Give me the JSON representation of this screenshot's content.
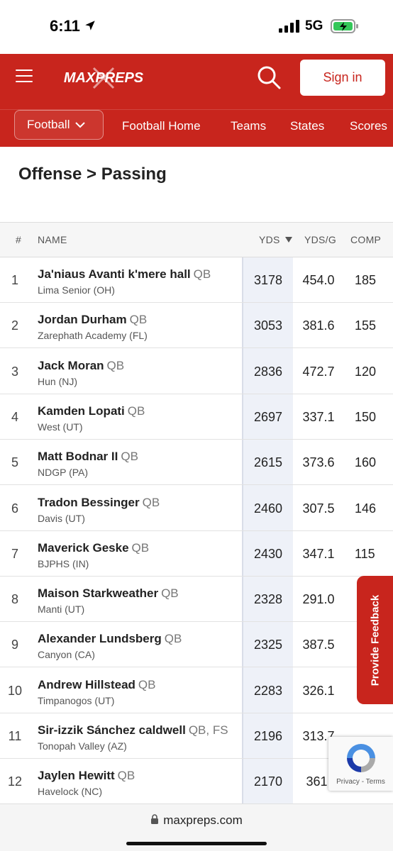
{
  "status_bar": {
    "time": "6:11",
    "network": "5G"
  },
  "header": {
    "logo_text": "MAXPREPS",
    "signin_label": "Sign in",
    "sport_label": "Football",
    "nav_links": [
      "Football Home",
      "Teams",
      "States",
      "Scores"
    ]
  },
  "page": {
    "title": "Offense > Passing"
  },
  "table": {
    "headers": {
      "rank": "#",
      "name": "NAME",
      "yds": "YDS",
      "ydsg": "YDS/G",
      "comp": "COMP"
    },
    "rows": [
      {
        "rank": "1",
        "name": "Ja'niaus Avanti k'mere hall",
        "pos": "QB",
        "school": "Lima Senior (OH)",
        "yds": "3178",
        "ydsg": "454.0",
        "comp": "185"
      },
      {
        "rank": "2",
        "name": "Jordan Durham",
        "pos": "QB",
        "school": "Zarephath Academy (FL)",
        "yds": "3053",
        "ydsg": "381.6",
        "comp": "155"
      },
      {
        "rank": "3",
        "name": "Jack Moran",
        "pos": "QB",
        "school": "Hun (NJ)",
        "yds": "2836",
        "ydsg": "472.7",
        "comp": "120"
      },
      {
        "rank": "4",
        "name": "Kamden Lopati",
        "pos": "QB",
        "school": "West (UT)",
        "yds": "2697",
        "ydsg": "337.1",
        "comp": "150"
      },
      {
        "rank": "5",
        "name": "Matt Bodnar II",
        "pos": "QB",
        "school": "NDGP (PA)",
        "yds": "2615",
        "ydsg": "373.6",
        "comp": "160"
      },
      {
        "rank": "6",
        "name": "Tradon Bessinger",
        "pos": "QB",
        "school": "Davis (UT)",
        "yds": "2460",
        "ydsg": "307.5",
        "comp": "146"
      },
      {
        "rank": "7",
        "name": "Maverick Geske",
        "pos": "QB",
        "school": "BJPHS (IN)",
        "yds": "2430",
        "ydsg": "347.1",
        "comp": "115"
      },
      {
        "rank": "8",
        "name": "Maison Starkweather",
        "pos": "QB",
        "school": "Manti (UT)",
        "yds": "2328",
        "ydsg": "291.0",
        "comp": ""
      },
      {
        "rank": "9",
        "name": "Alexander Lundsberg",
        "pos": "QB",
        "school": "Canyon (CA)",
        "yds": "2325",
        "ydsg": "387.5",
        "comp": ""
      },
      {
        "rank": "10",
        "name": "Andrew Hillstead",
        "pos": "QB",
        "school": "Timpanogos (UT)",
        "yds": "2283",
        "ydsg": "326.1",
        "comp": ""
      },
      {
        "rank": "11",
        "name": "Sir-izzik Sánchez caldwell",
        "pos": "QB, FS",
        "school": "Tonopah Valley (AZ)",
        "yds": "2196",
        "ydsg": "313.7",
        "comp": ""
      },
      {
        "rank": "12",
        "name": "Jaylen Hewitt",
        "pos": "QB",
        "school": "Havelock (NC)",
        "yds": "2170",
        "ydsg": "361.",
        "comp": ""
      }
    ]
  },
  "feedback_label": "Provide Feedback",
  "recaptcha": {
    "links": "Privacy - Terms"
  },
  "browser": {
    "url": "maxpreps.com"
  },
  "colors": {
    "brand": "#c8251d",
    "sorted_col": "#eef1f8"
  }
}
